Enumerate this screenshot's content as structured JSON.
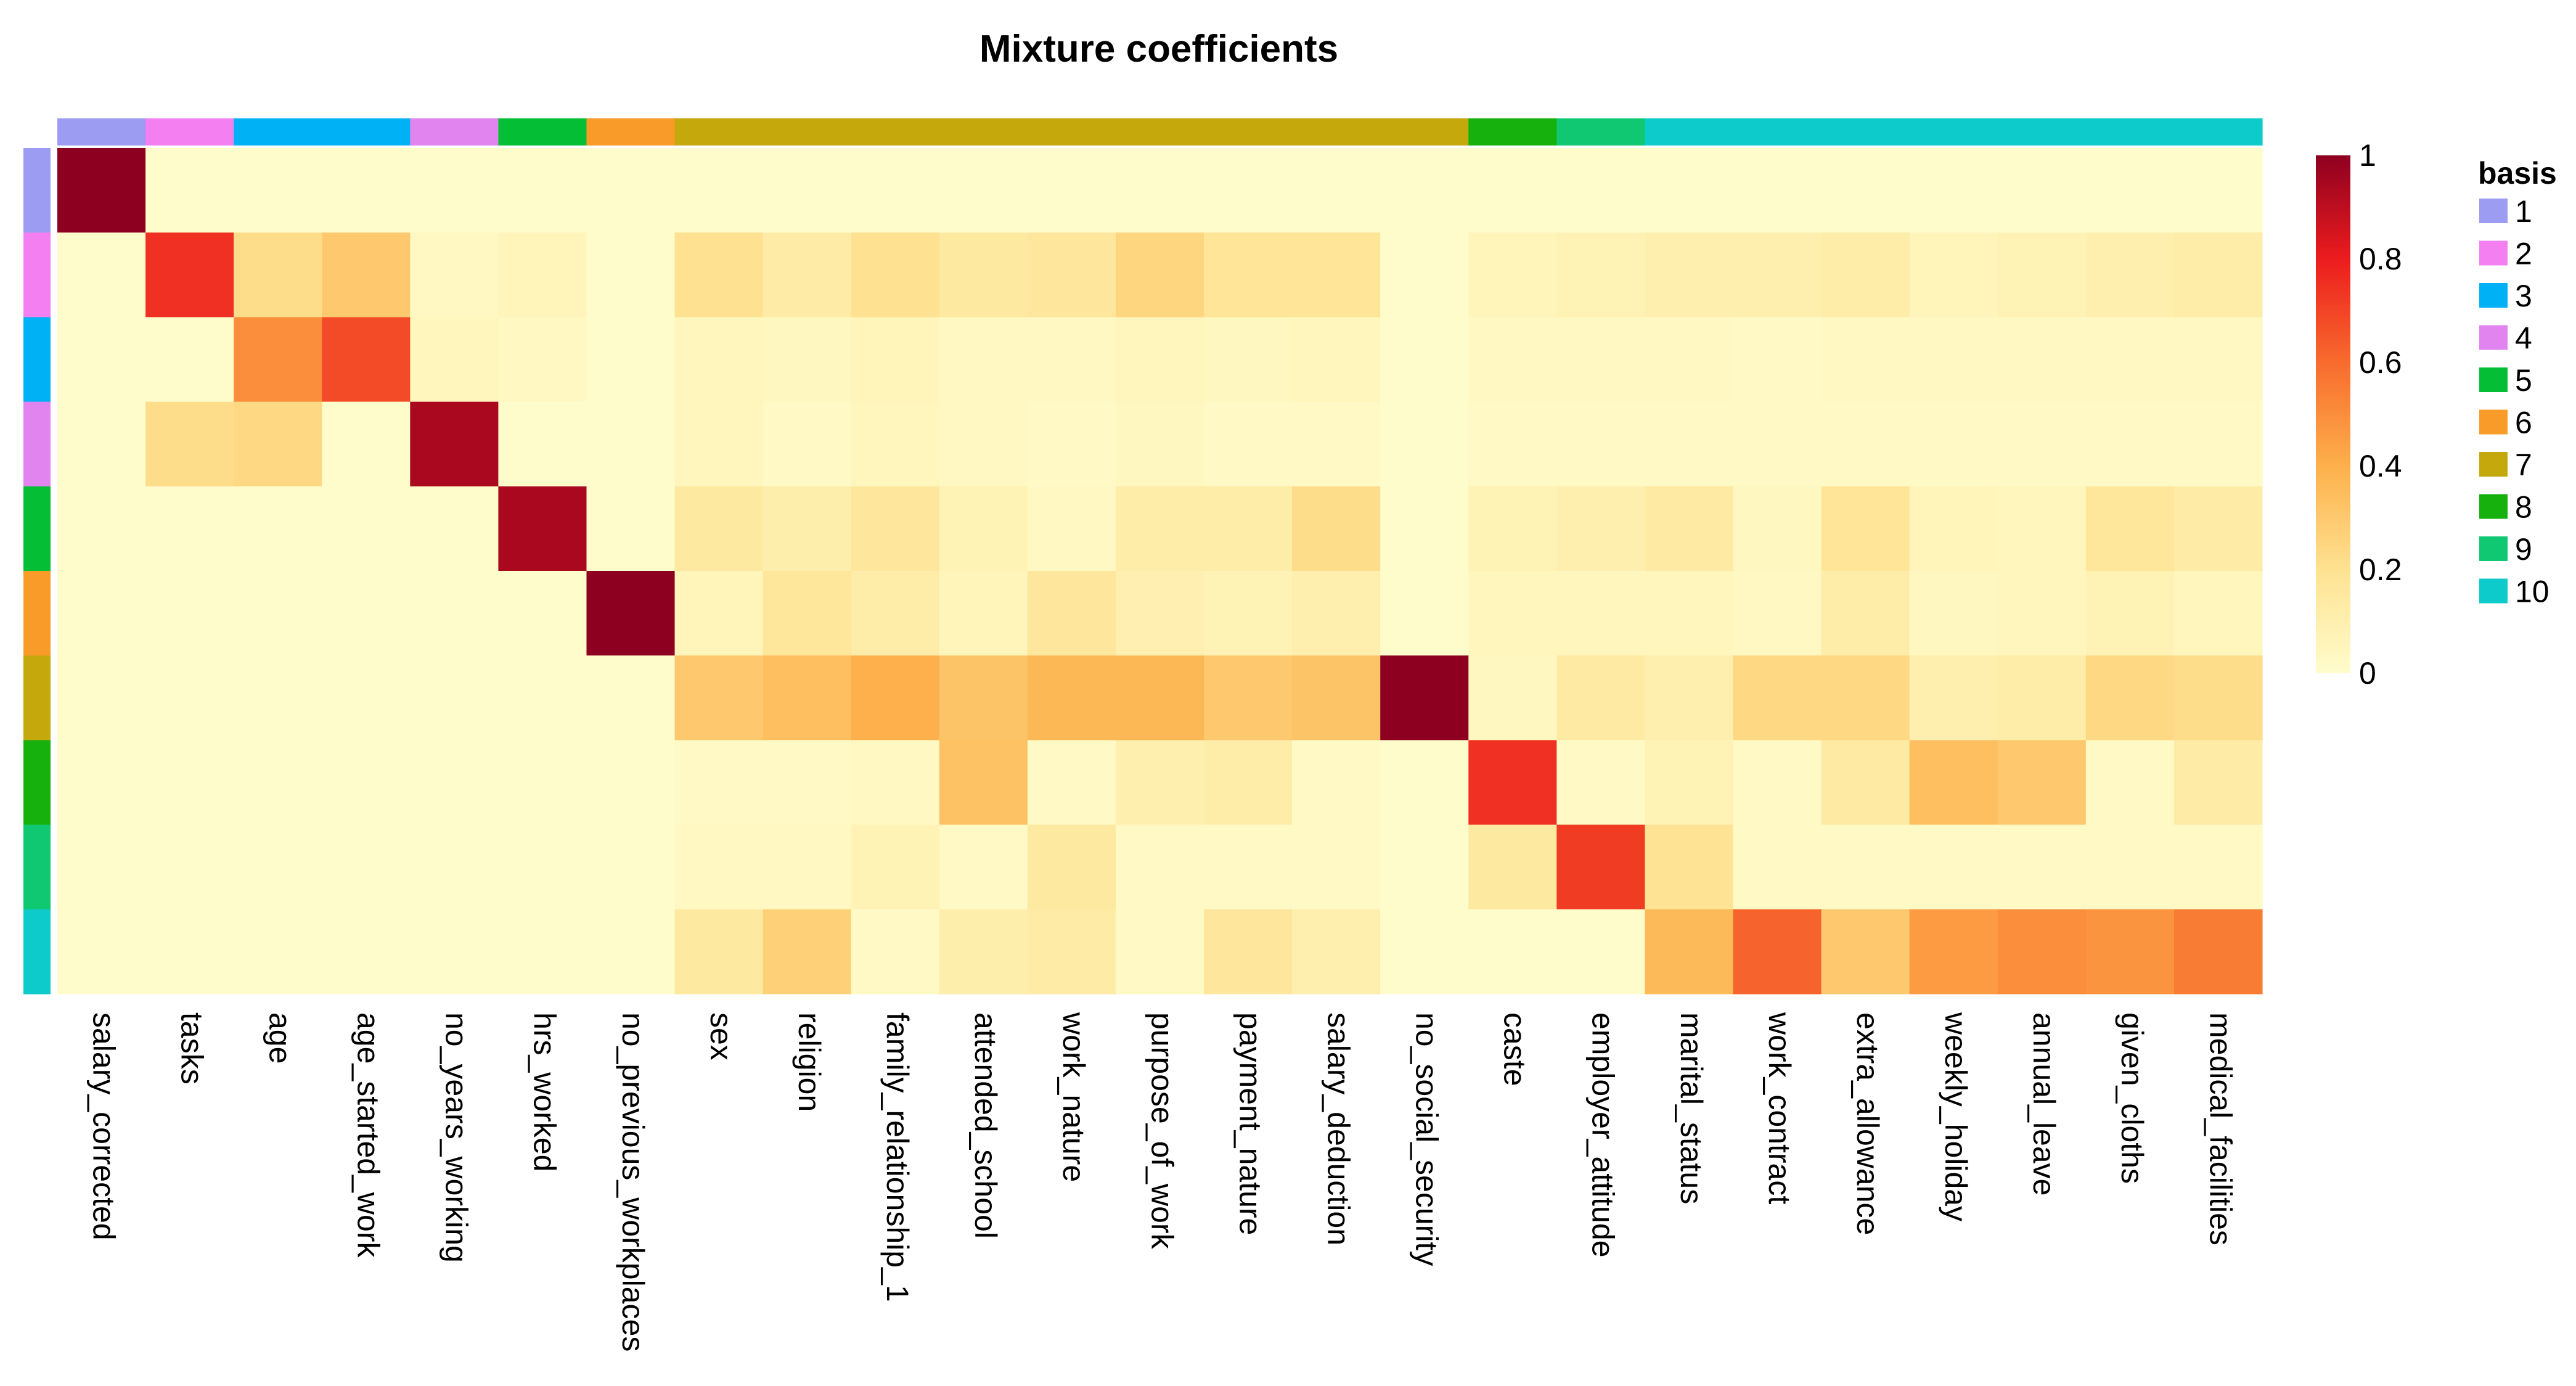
{
  "chart_data": {
    "type": "heatmap",
    "title": "Mixture coefficients",
    "columns": [
      "salary_corrected",
      "tasks",
      "age",
      "age_started_work",
      "no_years_working",
      "hrs_worked",
      "no_previous_workplaces",
      "sex",
      "religion",
      "family_relationship_1",
      "attended_school",
      "work_nature",
      "purpose_of_work",
      "payment_nature",
      "salary_deduction",
      "no_social_security",
      "caste",
      "employer_attitude",
      "marital_status",
      "work_contract",
      "extra_allowance",
      "weekly_holiday",
      "annual_leave",
      "given_cloths",
      "medical_facilities"
    ],
    "column_basis": [
      1,
      2,
      3,
      3,
      4,
      5,
      6,
      7,
      7,
      7,
      7,
      7,
      7,
      7,
      7,
      7,
      8,
      9,
      10,
      10,
      10,
      10,
      10,
      10,
      10
    ],
    "rows": [
      "1",
      "2",
      "3",
      "4",
      "5",
      "6",
      "7",
      "8",
      "9",
      "10"
    ],
    "values": [
      [
        1.0,
        0,
        0,
        0,
        0,
        0,
        0,
        0,
        0,
        0,
        0,
        0,
        0,
        0,
        0,
        0,
        0,
        0,
        0,
        0,
        0,
        0,
        0,
        0,
        0
      ],
      [
        0,
        0.75,
        0.22,
        0.3,
        0.03,
        0.06,
        0,
        0.2,
        0.13,
        0.2,
        0.15,
        0.16,
        0.25,
        0.18,
        0.18,
        0,
        0.06,
        0.08,
        0.1,
        0.1,
        0.12,
        0.06,
        0.08,
        0.1,
        0.12
      ],
      [
        0,
        0,
        0.5,
        0.68,
        0.05,
        0.03,
        0,
        0.05,
        0.04,
        0.06,
        0.03,
        0.03,
        0.05,
        0.04,
        0.05,
        0,
        0.03,
        0.03,
        0.03,
        0.02,
        0.03,
        0.03,
        0.03,
        0.03,
        0.03
      ],
      [
        0,
        0.22,
        0.24,
        0,
        0.94,
        0,
        0,
        0.05,
        0.02,
        0.05,
        0.03,
        0.02,
        0.04,
        0.02,
        0.02,
        0,
        0.02,
        0.02,
        0.02,
        0.02,
        0.02,
        0.02,
        0.02,
        0.02,
        0.02
      ],
      [
        0,
        0,
        0,
        0,
        0,
        0.94,
        0,
        0.15,
        0.11,
        0.16,
        0.08,
        0.03,
        0.12,
        0.12,
        0.22,
        0,
        0.08,
        0.1,
        0.14,
        0.04,
        0.18,
        0.06,
        0.05,
        0.17,
        0.13
      ],
      [
        0,
        0,
        0,
        0,
        0,
        0,
        1.0,
        0.06,
        0.17,
        0.12,
        0.06,
        0.16,
        0.09,
        0.08,
        0.1,
        0,
        0.05,
        0.05,
        0.05,
        0.03,
        0.12,
        0.04,
        0.05,
        0.08,
        0.05
      ],
      [
        0,
        0,
        0,
        0,
        0,
        0,
        0,
        0.3,
        0.34,
        0.4,
        0.32,
        0.37,
        0.37,
        0.3,
        0.32,
        1.0,
        0.04,
        0.14,
        0.1,
        0.24,
        0.24,
        0.1,
        0.12,
        0.24,
        0.22
      ],
      [
        0,
        0,
        0,
        0,
        0,
        0,
        0,
        0.02,
        0.02,
        0.03,
        0.33,
        0.02,
        0.1,
        0.12,
        0.02,
        0,
        0.75,
        0.02,
        0.08,
        0.02,
        0.14,
        0.34,
        0.3,
        0.02,
        0.13
      ],
      [
        0,
        0,
        0,
        0,
        0,
        0,
        0,
        0.03,
        0.03,
        0.08,
        0.02,
        0.15,
        0.02,
        0.02,
        0.02,
        0,
        0.15,
        0.72,
        0.19,
        0.02,
        0.02,
        0.02,
        0.02,
        0.02,
        0.02
      ],
      [
        0,
        0,
        0,
        0,
        0,
        0,
        0,
        0.15,
        0.27,
        0.02,
        0.11,
        0.13,
        0.02,
        0.16,
        0.1,
        0,
        0,
        0,
        0.36,
        0.62,
        0.3,
        0.46,
        0.5,
        0.48,
        0.55
      ]
    ],
    "basis_colors": {
      "1": "#9b9cf2",
      "2": "#f37ff0",
      "3": "#00b2f5",
      "4": "#e184ef",
      "5": "#04bf36",
      "6": "#f99b29",
      "7": "#c5a80b",
      "8": "#17b10e",
      "9": "#10c772",
      "10": "#0ccbca"
    },
    "colorbar": {
      "ticks": [
        "1",
        "0.8",
        "0.6",
        "0.4",
        "0.2",
        "0"
      ],
      "tick_values": [
        1,
        0.8,
        0.6,
        0.4,
        0.2,
        0
      ],
      "range": [
        0,
        1
      ]
    },
    "legend": {
      "title": "basis",
      "entries": [
        "1",
        "2",
        "3",
        "4",
        "5",
        "6",
        "7",
        "8",
        "9",
        "10"
      ]
    }
  }
}
